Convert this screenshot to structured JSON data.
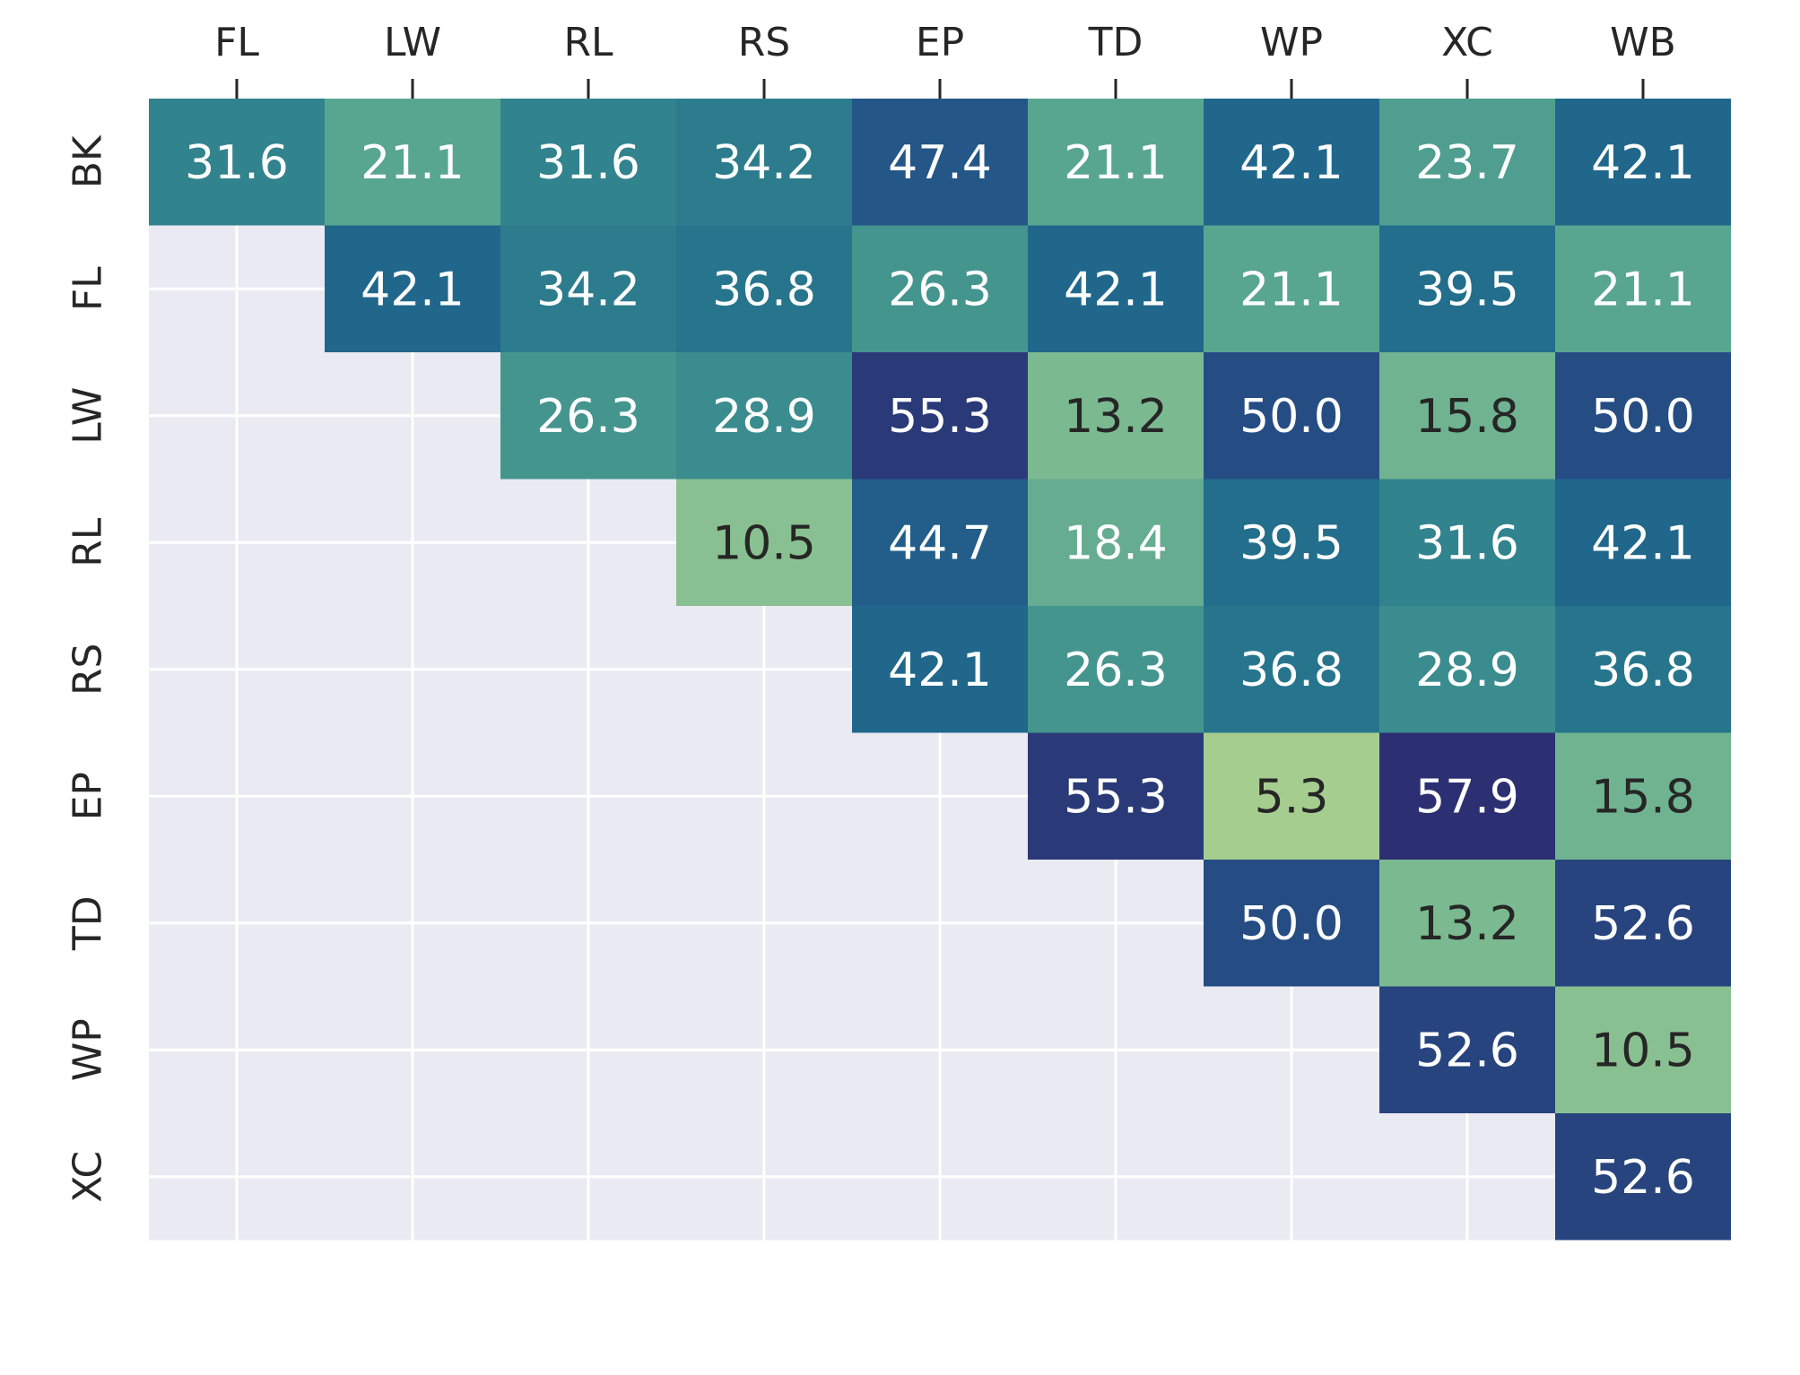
{
  "chart_data": {
    "type": "heatmap",
    "title": "",
    "xlabel": "",
    "ylabel": "",
    "columns": [
      "FL",
      "LW",
      "RL",
      "RS",
      "EP",
      "TD",
      "WP",
      "XC",
      "WB"
    ],
    "rows": [
      "BK",
      "FL",
      "LW",
      "RL",
      "RS",
      "EP",
      "TD",
      "WP",
      "XC"
    ],
    "values": [
      [
        31.6,
        21.1,
        31.6,
        34.2,
        47.4,
        21.1,
        42.1,
        23.7,
        42.1
      ],
      [
        null,
        42.1,
        34.2,
        36.8,
        26.3,
        42.1,
        21.1,
        39.5,
        21.1
      ],
      [
        null,
        null,
        26.3,
        28.9,
        55.3,
        13.2,
        50.0,
        15.8,
        50.0
      ],
      [
        null,
        null,
        null,
        10.5,
        44.7,
        18.4,
        39.5,
        31.6,
        42.1
      ],
      [
        null,
        null,
        null,
        null,
        42.1,
        26.3,
        36.8,
        28.9,
        36.8
      ],
      [
        null,
        null,
        null,
        null,
        null,
        55.3,
        5.3,
        57.9,
        15.8
      ],
      [
        null,
        null,
        null,
        null,
        null,
        null,
        50.0,
        13.2,
        52.6
      ],
      [
        null,
        null,
        null,
        null,
        null,
        null,
        null,
        52.6,
        10.5
      ],
      [
        null,
        null,
        null,
        null,
        null,
        null,
        null,
        null,
        52.6
      ]
    ],
    "value_format": "0.0",
    "colorscale": "crest",
    "color_range": [
      5.3,
      57.9
    ],
    "colors": {
      "background": "#eaeaf2",
      "grid": "#ffffff",
      "text_light": "#ffffff",
      "text_dark": "#262626"
    },
    "x_axis_position": "top",
    "grid": true,
    "legend": "none"
  }
}
